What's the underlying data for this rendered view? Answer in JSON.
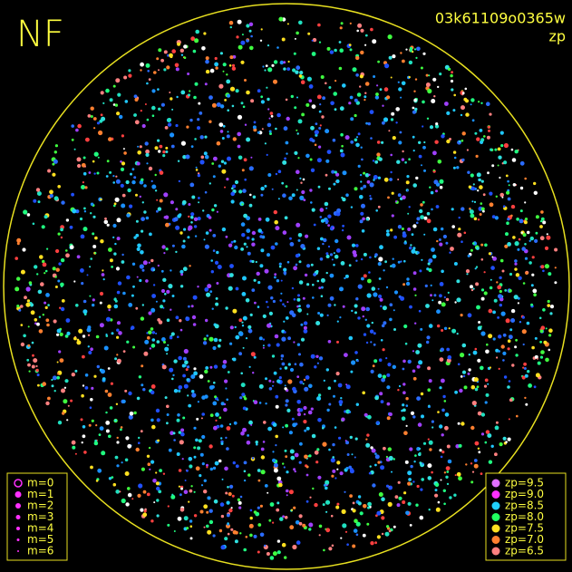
{
  "header": {
    "title": "NF",
    "frame_id": "03k61109o0365w",
    "metric": "zp"
  },
  "magnitude_legend": [
    "m=0",
    "m=1",
    "m=2",
    "m=3",
    "m=4",
    "m=5",
    "m=6"
  ],
  "zp_legend": [
    {
      "label": "zp=9.5",
      "color": "#e070ff"
    },
    {
      "label": "zp=9.0",
      "color": "#ff30ff"
    },
    {
      "label": "zp=8.5",
      "color": "#20d0ff"
    },
    {
      "label": "zp=8.0",
      "color": "#20ff60"
    },
    {
      "label": "zp=7.5",
      "color": "#ffe020"
    },
    {
      "label": "zp=7.0",
      "color": "#ff8030"
    },
    {
      "label": "zp=6.5",
      "color": "#ff8080"
    }
  ]
}
